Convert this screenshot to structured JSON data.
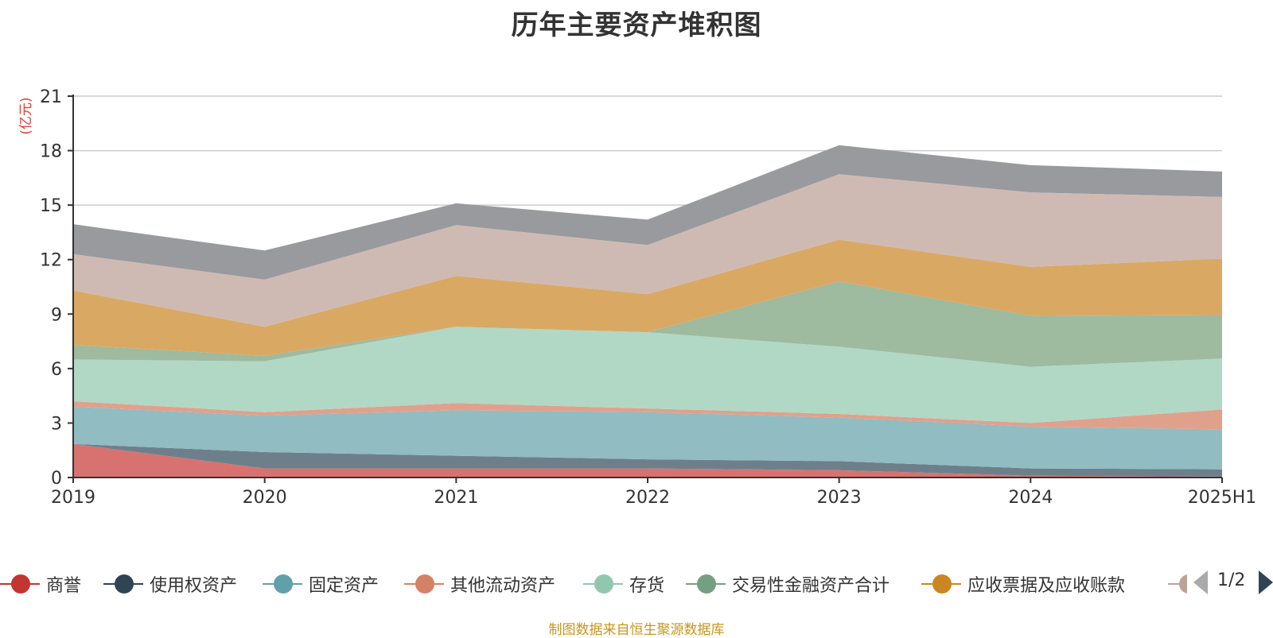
{
  "title": "历年主要资产堆积图",
  "source_note": "制图数据来自恒生聚源数据库",
  "pager": {
    "text": "1/2"
  },
  "chart_data": {
    "type": "area",
    "stacked": true,
    "title": "历年主要资产堆积图",
    "unit_label": "(亿元)",
    "categories": [
      "2019",
      "2020",
      "2021",
      "2022",
      "2023",
      "2024",
      "2025H1"
    ],
    "ylim": [
      0,
      21
    ],
    "yticks": [
      0,
      3,
      6,
      9,
      12,
      15,
      18,
      21
    ],
    "grid": true,
    "legend_position": "bottom",
    "series": [
      {
        "name": "商誉",
        "color": "#c23531",
        "fill": "#d87270",
        "values": [
          1.85,
          0.5,
          0.5,
          0.5,
          0.4,
          0.1,
          0.05
        ]
      },
      {
        "name": "使用权资产",
        "color": "#2f4554",
        "fill": "#6e7f8c",
        "values": [
          0.0,
          0.9,
          0.7,
          0.5,
          0.5,
          0.4,
          0.4
        ]
      },
      {
        "name": "固定资产",
        "color": "#61a0a8",
        "fill": "#90bcc2",
        "values": [
          2.05,
          2.0,
          2.5,
          2.6,
          2.4,
          2.3,
          2.2
        ]
      },
      {
        "name": "其他流动资产",
        "color": "#d48265",
        "fill": "#e0a18c",
        "values": [
          0.3,
          0.2,
          0.4,
          0.2,
          0.2,
          0.2,
          1.1
        ]
      },
      {
        "name": "存货",
        "color": "#91c7ae",
        "fill": "#b1d8c5",
        "values": [
          2.3,
          2.8,
          4.2,
          4.2,
          3.7,
          3.1,
          2.8
        ]
      },
      {
        "name": "交易性金融资产合计",
        "color": "#749f83",
        "fill": "#9eba9f",
        "values": [
          0.8,
          0.3,
          0.0,
          0.0,
          3.6,
          2.8,
          2.4
        ]
      },
      {
        "name": "应收票据及应收账款",
        "color": "#ca8622",
        "fill": "#d9a964",
        "values": [
          3.0,
          1.6,
          2.8,
          2.1,
          2.3,
          2.7,
          3.1
        ]
      },
      {
        "name": "",
        "color": "#bda29a",
        "fill": "#cfbab3",
        "values": [
          2.0,
          2.6,
          2.8,
          2.7,
          3.6,
          4.1,
          3.4
        ]
      },
      {
        "name": "",
        "color": "#6e7074",
        "fill": "#999a9e",
        "values": [
          1.65,
          1.6,
          1.2,
          1.4,
          1.6,
          1.5,
          1.4
        ]
      }
    ]
  }
}
